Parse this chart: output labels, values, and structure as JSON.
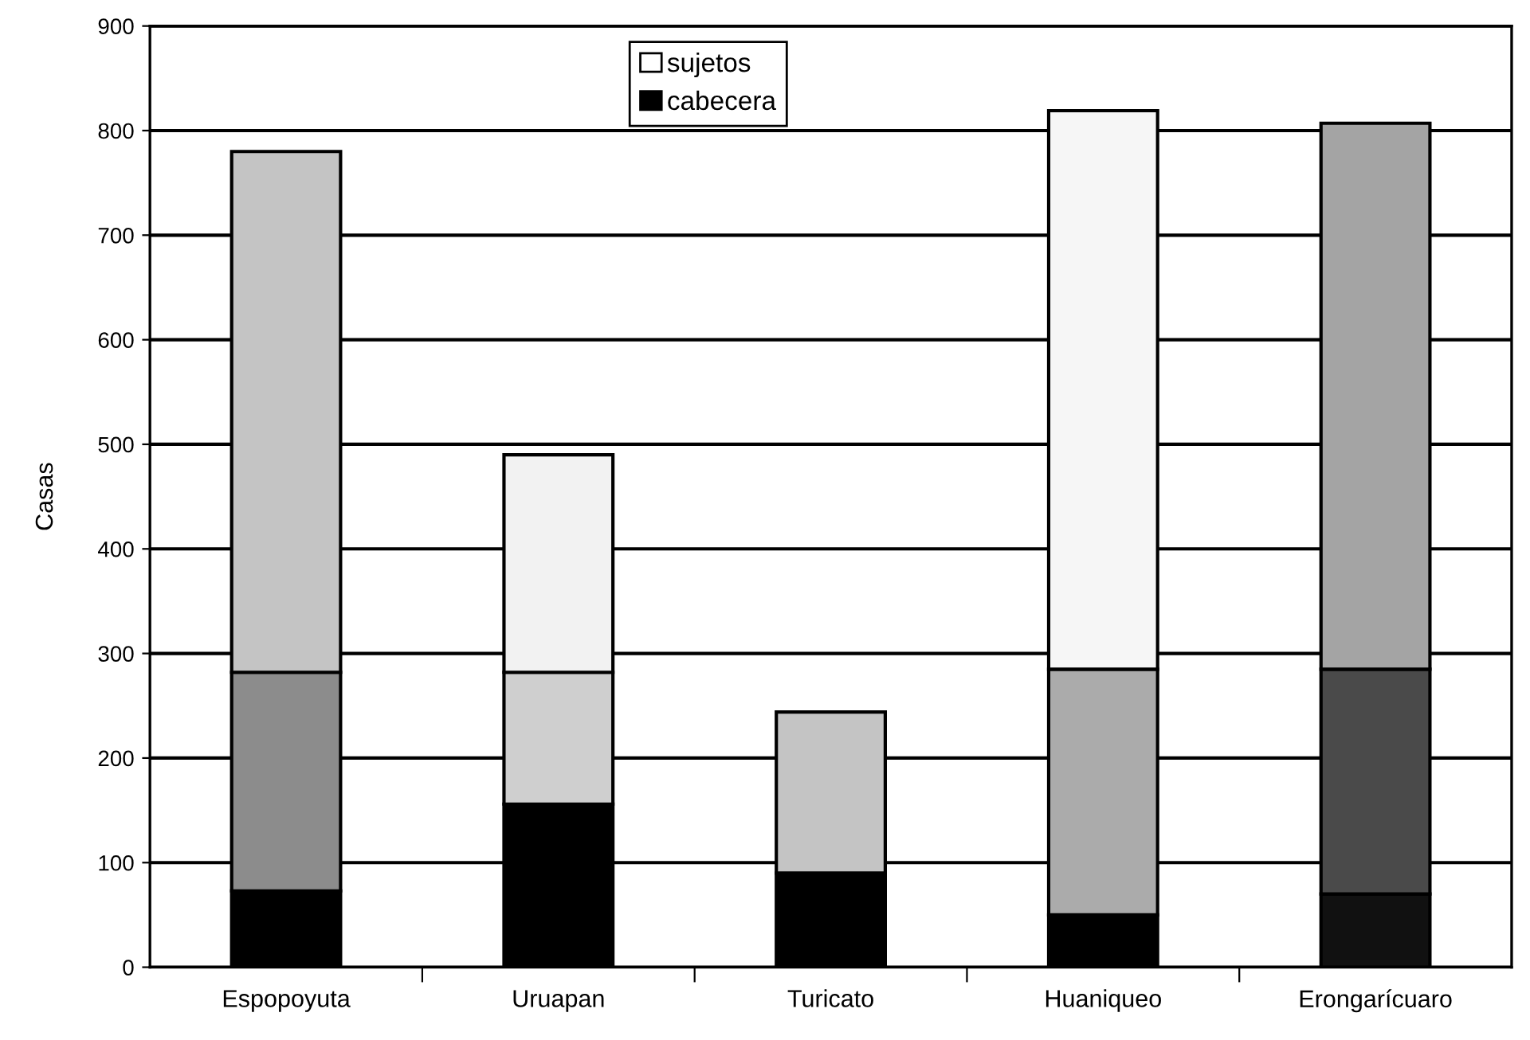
{
  "chart_data": {
    "type": "bar",
    "stacked": true,
    "ylabel": "Casas",
    "categories": [
      "Espopoyuta",
      "Uruapan",
      "Turicato",
      "Huaniqueo",
      "Erongarícuaro"
    ],
    "series": [
      {
        "name": "cabecera",
        "color": "#000000",
        "values": [
          73,
          156,
          90,
          50,
          70
        ],
        "colors": [
          "#000000",
          "#000000",
          "#000000",
          "#000000",
          "#111111"
        ]
      },
      {
        "color": "#a0a0a0",
        "values": [
          209,
          126,
          154,
          235,
          215
        ],
        "colors": [
          "#8c8c8c",
          "#cfcfcf",
          "#c4c4c4",
          "#ababab",
          "#4a4a4a"
        ]
      },
      {
        "name": "sujetos",
        "color": "#ffffff",
        "values": [
          498,
          208,
          null,
          534,
          522
        ],
        "colors": [
          "#c4c4c4",
          "#f2f2f2",
          "#c4c4c4",
          "#f6f6f6",
          "#a4a4a4"
        ]
      }
    ],
    "ylim": [
      0,
      900
    ],
    "yticks": [
      0,
      100,
      200,
      300,
      400,
      500,
      600,
      700,
      800,
      900
    ],
    "grid": "y",
    "legend": "top"
  }
}
